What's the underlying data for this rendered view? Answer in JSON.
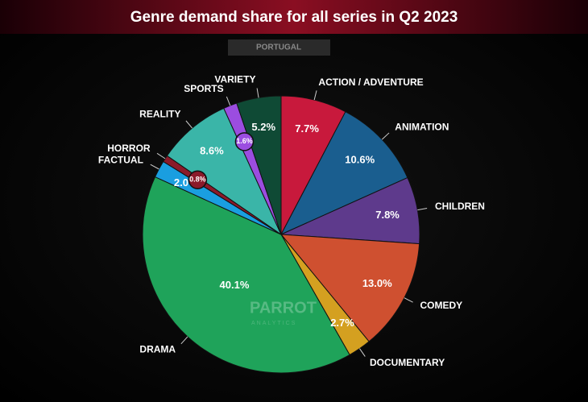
{
  "chart_data": {
    "type": "pie",
    "title": "Genre demand share for all series in Q2 2023",
    "subtitle": "PORTUGAL",
    "watermark": [
      "PARROT",
      "ANALYTICS"
    ],
    "categories": [
      "ACTION / ADVENTURE",
      "ANIMATION",
      "CHILDREN",
      "COMEDY",
      "DOCUMENTARY",
      "DRAMA",
      "FACTUAL",
      "HORROR",
      "REALITY",
      "SPORTS",
      "VARIETY"
    ],
    "values": [
      7.7,
      10.6,
      7.8,
      13.0,
      2.7,
      40.1,
      2.0,
      0.8,
      8.6,
      1.6,
      5.2
    ],
    "value_labels": [
      "7.7%",
      "10.6%",
      "7.8%",
      "13.0%",
      "2.7%",
      "40.1%",
      "2.0%",
      "0.8%",
      "8.6%",
      "1.6%",
      "5.2%"
    ],
    "colors": [
      "#c8193c",
      "#1a5e8f",
      "#5e3a8c",
      "#cf5030",
      "#d4a020",
      "#1fa35a",
      "#1a9ee0",
      "#8b1a2a",
      "#3ab5a8",
      "#9b4de0",
      "#0f4a35"
    ]
  }
}
